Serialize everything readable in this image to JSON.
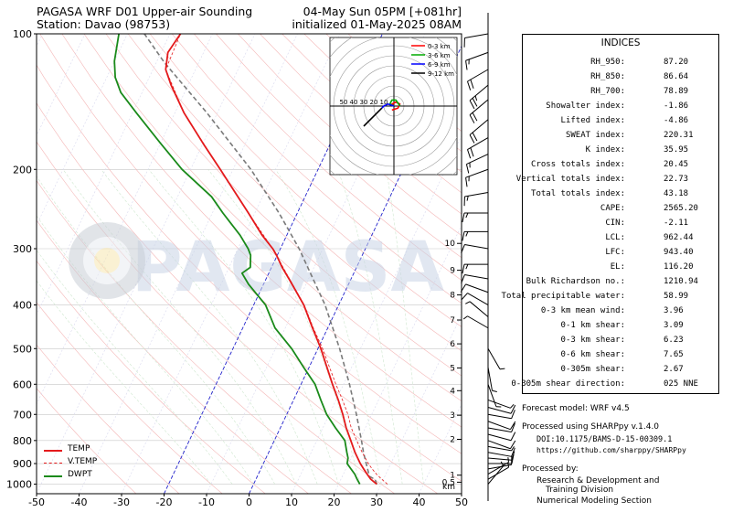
{
  "header": {
    "title_left": "PAGASA WRF D01 Upper-air Sounding",
    "station": "Station: Davao (98753)",
    "valid": "04-May Sun 05PM [+081hr]",
    "init": "initialized 01-May-2025 08AM"
  },
  "watermark": "PAGASA",
  "indices": {
    "title": "INDICES",
    "rows": [
      {
        "label": "RH_950:",
        "value": "87.20"
      },
      {
        "label": "RH_850:",
        "value": "86.64"
      },
      {
        "label": "RH_700:",
        "value": "78.89"
      },
      {
        "label": "Showalter index:",
        "value": "-1.86"
      },
      {
        "label": "Lifted index:",
        "value": "-4.86"
      },
      {
        "label": "SWEAT index:",
        "value": "220.31"
      },
      {
        "label": "K index:",
        "value": "35.95"
      },
      {
        "label": "Cross totals index:",
        "value": "20.45"
      },
      {
        "label": "Vertical totals index:",
        "value": "22.73"
      },
      {
        "label": "Total totals index:",
        "value": "43.18"
      },
      {
        "label": "CAPE:",
        "value": "2565.20"
      },
      {
        "label": "CIN:",
        "value": "-2.11"
      },
      {
        "label": "LCL:",
        "value": "962.44"
      },
      {
        "label": "LFC:",
        "value": "943.40"
      },
      {
        "label": "EL:",
        "value": "116.20"
      },
      {
        "label": "Bulk Richardson no.:",
        "value": "1210.94"
      },
      {
        "label": "Total precipitable water:",
        "value": "58.99"
      },
      {
        "label": "0-3 km mean wind:",
        "value": "3.96"
      },
      {
        "label": "0-1 km shear:",
        "value": "3.09"
      },
      {
        "label": "0-3 km shear:",
        "value": "6.23"
      },
      {
        "label": "0-6 km shear:",
        "value": "7.65"
      },
      {
        "label": "0-305m shear:",
        "value": "2.67"
      },
      {
        "label": "0-305m shear direction:",
        "value": "025 NNE"
      }
    ]
  },
  "footer": {
    "forecast_model": "Forecast model: WRF v4.5",
    "processed_using": "Processed using SHARPpy v.1.4.0",
    "doi": "DOI:10.1175/BAMS-D-15-00309.1",
    "url": "https://github.com/sharppy/SHARPpy",
    "processed_by": "Processed by:",
    "org_line1": "Research & Development and",
    "org_line2": "Training Division",
    "org_line3": "Numerical Modeling Section"
  },
  "colors": {
    "temp": "#e41a1c",
    "dwpt": "#1a8a1a",
    "vtemp": "#e41a1c",
    "parcel": "#7a7a7a",
    "isotherm_zero": "#2222cc",
    "hodo_0_3": "#ff0000",
    "hodo_3_6": "#00aa00",
    "hodo_6_9": "#0000ff",
    "hodo_9_12": "#000000"
  },
  "chart_data": {
    "type": "line",
    "subtype": "skew-t log-p",
    "x_axis": {
      "range": [
        -50,
        50
      ],
      "ticks": [
        -50,
        -40,
        -30,
        -20,
        -10,
        0,
        10,
        20,
        30,
        40,
        50
      ]
    },
    "y_axis": {
      "scale": "log",
      "range": [
        1050,
        100
      ],
      "ticks": [
        1000,
        900,
        800,
        700,
        600,
        500,
        400,
        300,
        200,
        100
      ]
    },
    "height_ticks_km": [
      {
        "p": 1012,
        "label": "km"
      },
      {
        "p": 990,
        "label": "0.5"
      },
      {
        "p": 955,
        "label": "1"
      },
      {
        "p": 795,
        "label": "2"
      },
      {
        "p": 703,
        "label": "3"
      },
      {
        "p": 620,
        "label": "4"
      },
      {
        "p": 552,
        "label": "5"
      },
      {
        "p": 488,
        "label": "6"
      },
      {
        "p": 432,
        "label": "7"
      },
      {
        "p": 380,
        "label": "8"
      },
      {
        "p": 335,
        "label": "9"
      },
      {
        "p": 292,
        "label": "10"
      }
    ],
    "legend": [
      {
        "name": "TEMP",
        "style": "solid",
        "color": "#e41a1c"
      },
      {
        "name": "V.TEMP",
        "style": "dashed",
        "color": "#e41a1c"
      },
      {
        "name": "DWPT",
        "style": "solid",
        "color": "#1a8a1a"
      }
    ],
    "series": {
      "temp": [
        [
          1000,
          29
        ],
        [
          975,
          27
        ],
        [
          950,
          25.6
        ],
        [
          925,
          24.2
        ],
        [
          900,
          22.8
        ],
        [
          850,
          20.3
        ],
        [
          800,
          18
        ],
        [
          750,
          15.5
        ],
        [
          700,
          13.2
        ],
        [
          650,
          10.5
        ],
        [
          600,
          7.4
        ],
        [
          550,
          4.2
        ],
        [
          500,
          0.7
        ],
        [
          450,
          -3.6
        ],
        [
          400,
          -8.2
        ],
        [
          350,
          -14.6
        ],
        [
          330,
          -17.5
        ],
        [
          310,
          -20.2
        ],
        [
          300,
          -21.8
        ],
        [
          280,
          -25.8
        ],
        [
          250,
          -31.5
        ],
        [
          200,
          -43
        ],
        [
          175,
          -50
        ],
        [
          150,
          -57.8
        ],
        [
          130,
          -64
        ],
        [
          120,
          -67
        ],
        [
          110,
          -68.4
        ],
        [
          100,
          -67.5
        ]
      ],
      "vtemp": [
        [
          1000,
          31.5
        ],
        [
          975,
          29.6
        ],
        [
          950,
          27.8
        ],
        [
          925,
          26.2
        ],
        [
          900,
          24.7
        ],
        [
          850,
          22
        ],
        [
          800,
          19.4
        ],
        [
          750,
          16.7
        ],
        [
          700,
          14.4
        ],
        [
          650,
          11.5
        ],
        [
          600,
          8.2
        ],
        [
          550,
          4.8
        ],
        [
          500,
          1.1
        ],
        [
          450,
          -3.4
        ],
        [
          400,
          -8.1
        ],
        [
          350,
          -14.5
        ],
        [
          300,
          -21.8
        ],
        [
          250,
          -31.5
        ],
        [
          200,
          -43
        ],
        [
          150,
          -57.8
        ],
        [
          120,
          -67
        ],
        [
          100,
          -67.5
        ]
      ],
      "dwpt": [
        [
          1000,
          25
        ],
        [
          975,
          23.8
        ],
        [
          950,
          22.7
        ],
        [
          925,
          21.2
        ],
        [
          900,
          19.7
        ],
        [
          875,
          19.3
        ],
        [
          850,
          18.4
        ],
        [
          800,
          16.6
        ],
        [
          750,
          13
        ],
        [
          700,
          9.4
        ],
        [
          650,
          6.4
        ],
        [
          600,
          3.3
        ],
        [
          550,
          -1.3
        ],
        [
          500,
          -6.2
        ],
        [
          450,
          -12.4
        ],
        [
          400,
          -17.2
        ],
        [
          360,
          -23.5
        ],
        [
          340,
          -26.3
        ],
        [
          330,
          -25
        ],
        [
          310,
          -26.3
        ],
        [
          300,
          -27.6
        ],
        [
          280,
          -31
        ],
        [
          250,
          -37.5
        ],
        [
          230,
          -42
        ],
        [
          200,
          -52
        ],
        [
          175,
          -60
        ],
        [
          150,
          -69
        ],
        [
          135,
          -75
        ],
        [
          125,
          -78
        ],
        [
          115,
          -80
        ],
        [
          100,
          -82
        ]
      ],
      "parcel": [
        [
          1000,
          29
        ],
        [
          975,
          28
        ],
        [
          962,
          26.5
        ],
        [
          950,
          26
        ],
        [
          900,
          24.2
        ],
        [
          850,
          22.3
        ],
        [
          800,
          20.5
        ],
        [
          700,
          16.4
        ],
        [
          600,
          11.4
        ],
        [
          500,
          5.1
        ],
        [
          400,
          -3.2
        ],
        [
          300,
          -15.6
        ],
        [
          250,
          -24.3
        ],
        [
          200,
          -35.8
        ],
        [
          150,
          -52.4
        ],
        [
          116,
          -68
        ],
        [
          100,
          -76
        ]
      ]
    },
    "wind_barbs": [
      {
        "p": 1000,
        "dir": 40,
        "spd": 5
      },
      {
        "p": 975,
        "dir": 60,
        "spd": 5
      },
      {
        "p": 950,
        "dir": 60,
        "spd": 5
      },
      {
        "p": 925,
        "dir": 80,
        "spd": 10
      },
      {
        "p": 900,
        "dir": 90,
        "spd": 10
      },
      {
        "p": 875,
        "dir": 95,
        "spd": 10
      },
      {
        "p": 850,
        "dir": 100,
        "spd": 10
      },
      {
        "p": 825,
        "dir": 100,
        "spd": 5
      },
      {
        "p": 800,
        "dir": 110,
        "spd": 10
      },
      {
        "p": 775,
        "dir": 105,
        "spd": 10
      },
      {
        "p": 750,
        "dir": 100,
        "spd": 10
      },
      {
        "p": 725,
        "dir": 110,
        "spd": 10
      },
      {
        "p": 700,
        "dir": 100,
        "spd": 10
      },
      {
        "p": 675,
        "dir": 105,
        "spd": 10
      },
      {
        "p": 650,
        "dir": 110,
        "spd": 5
      },
      {
        "p": 600,
        "dir": 160,
        "spd": 5
      },
      {
        "p": 550,
        "dir": 170,
        "spd": 5
      },
      {
        "p": 500,
        "dir": 150,
        "spd": 5
      },
      {
        "p": 450,
        "dir": 300,
        "spd": 5
      },
      {
        "p": 425,
        "dir": 310,
        "spd": 5
      },
      {
        "p": 400,
        "dir": 300,
        "spd": 10
      },
      {
        "p": 375,
        "dir": 290,
        "spd": 10
      },
      {
        "p": 350,
        "dir": 280,
        "spd": 10
      },
      {
        "p": 325,
        "dir": 270,
        "spd": 15
      },
      {
        "p": 300,
        "dir": 280,
        "spd": 10
      },
      {
        "p": 275,
        "dir": 270,
        "spd": 15
      },
      {
        "p": 250,
        "dir": 270,
        "spd": 15
      },
      {
        "p": 225,
        "dir": 260,
        "spd": 15
      },
      {
        "p": 200,
        "dir": 250,
        "spd": 15
      },
      {
        "p": 185,
        "dir": 245,
        "spd": 15
      },
      {
        "p": 170,
        "dir": 240,
        "spd": 20
      },
      {
        "p": 155,
        "dir": 230,
        "spd": 20
      },
      {
        "p": 140,
        "dir": 230,
        "spd": 20
      },
      {
        "p": 130,
        "dir": 230,
        "spd": 25
      },
      {
        "p": 120,
        "dir": 240,
        "spd": 20
      },
      {
        "p": 110,
        "dir": 250,
        "spd": 15
      },
      {
        "p": 100,
        "dir": 260,
        "spd": 10
      }
    ],
    "hodograph": {
      "rings_labels": [
        "50",
        "40",
        "30",
        "20",
        "10"
      ],
      "legend": [
        {
          "name": "0-3 km",
          "color": "#ff0000"
        },
        {
          "name": "3-6 km",
          "color": "#00aa00"
        },
        {
          "name": "6-9 km",
          "color": "#0000ff"
        },
        {
          "name": "9-12 km",
          "color": "#000000"
        }
      ],
      "traces": [
        {
          "layer": "0-3 km",
          "pts": [
            [
              -1,
              -2
            ],
            [
              2,
              -1
            ],
            [
              3,
              1
            ],
            [
              1,
              2
            ],
            [
              -1,
              1
            ],
            [
              0,
              0
            ]
          ]
        },
        {
          "layer": "3-6 km",
          "pts": [
            [
              0,
              0
            ],
            [
              -2,
              1
            ],
            [
              -1,
              3
            ],
            [
              1,
              3
            ],
            [
              3,
              0
            ]
          ]
        },
        {
          "layer": "6-9 km",
          "pts": [
            [
              0,
              0
            ],
            [
              -3,
              1
            ],
            [
              -5,
              0
            ],
            [
              -6,
              -1
            ]
          ]
        },
        {
          "layer": "9-12 km",
          "pts": [
            [
              -6,
              -1
            ],
            [
              -9,
              -4
            ],
            [
              -13,
              -8
            ],
            [
              -15,
              -10
            ]
          ]
        }
      ]
    }
  }
}
